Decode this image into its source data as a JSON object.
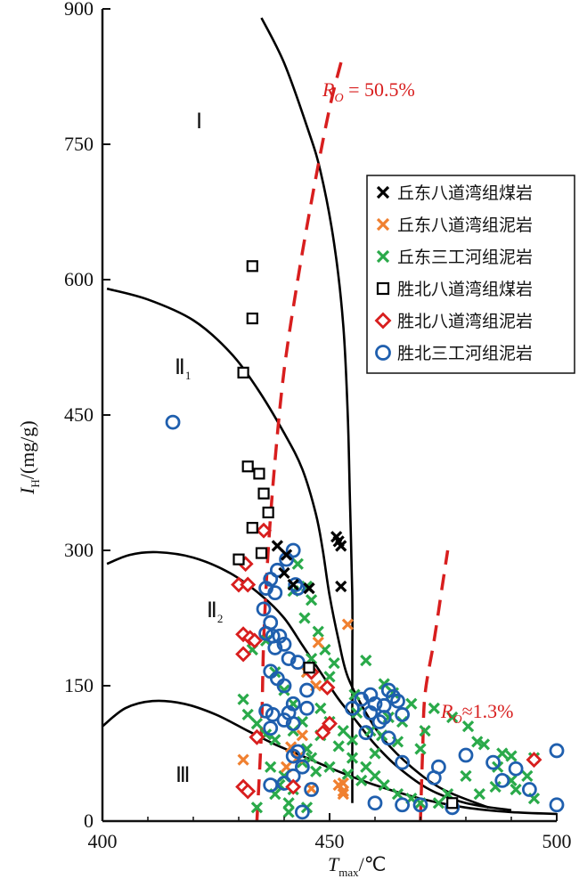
{
  "chart_data": {
    "type": "scatter",
    "title": "",
    "xlabel_main": "T",
    "xlabel_sub": "max",
    "xlabel_unit": "/℃",
    "ylabel_main": "I",
    "ylabel_sub": "H",
    "ylabel_unit": "/(mg/g)",
    "xlim": [
      400,
      500
    ],
    "ylim": [
      0,
      900
    ],
    "xticks": [
      400,
      450,
      500
    ],
    "yticks": [
      0,
      150,
      300,
      450,
      600,
      750,
      900
    ],
    "legend_position": "top-right",
    "grid": false,
    "series": [
      {
        "name": "丘东八道湾组煤岩",
        "marker": "x",
        "color": "#000000",
        "points": [
          [
            438.5,
            305
          ],
          [
            440.5,
            295
          ],
          [
            440,
            275
          ],
          [
            442,
            262
          ],
          [
            445.5,
            258
          ],
          [
            451.5,
            315
          ],
          [
            452,
            310
          ],
          [
            452.5,
            305
          ],
          [
            452.5,
            260
          ]
        ]
      },
      {
        "name": "丘东八道湾组泥岩",
        "marker": "x",
        "color": "#f08030",
        "points": [
          [
            447.5,
            198
          ],
          [
            445,
            165
          ],
          [
            447,
            150
          ],
          [
            454,
            218
          ],
          [
            443,
            70
          ],
          [
            444,
            95
          ],
          [
            441.5,
            82
          ],
          [
            446,
            36
          ],
          [
            453,
            42
          ],
          [
            453,
            33
          ],
          [
            431,
            68
          ],
          [
            440.5,
            60
          ],
          [
            452,
            40
          ],
          [
            453,
            30
          ]
        ]
      },
      {
        "name": "丘东三工河组泥岩",
        "marker": "x",
        "color": "#2aaa4a",
        "points": [
          [
            443,
            285
          ],
          [
            445,
            260
          ],
          [
            442,
            255
          ],
          [
            446,
            245
          ],
          [
            444.5,
            225
          ],
          [
            447.5,
            210
          ],
          [
            449,
            190
          ],
          [
            446,
            180
          ],
          [
            451,
            175
          ],
          [
            445,
            165
          ],
          [
            450,
            160
          ],
          [
            458,
            178
          ],
          [
            462,
            152
          ],
          [
            455.5,
            140
          ],
          [
            464,
            142
          ],
          [
            456,
            120
          ],
          [
            459,
            100
          ],
          [
            461.5,
            95
          ],
          [
            465,
            88
          ],
          [
            470,
            80
          ],
          [
            473,
            125
          ],
          [
            477,
            115
          ],
          [
            482.5,
            88
          ],
          [
            480.5,
            105
          ],
          [
            484,
            85
          ],
          [
            488,
            75
          ],
          [
            490,
            72
          ],
          [
            495,
            70
          ],
          [
            493.5,
            50
          ],
          [
            490,
            45
          ],
          [
            486.5,
            38
          ],
          [
            483,
            30
          ],
          [
            476,
            30
          ],
          [
            474,
            20
          ],
          [
            431,
            135
          ],
          [
            432,
            118
          ],
          [
            434,
            108
          ],
          [
            436,
            96
          ],
          [
            438,
            90
          ],
          [
            437,
            60
          ],
          [
            439,
            40
          ],
          [
            441,
            20
          ],
          [
            445,
            15
          ],
          [
            441,
            10
          ],
          [
            438,
            30
          ],
          [
            440,
            50
          ],
          [
            434,
            15
          ],
          [
            442,
            35
          ],
          [
            433,
            190
          ],
          [
            436,
            200
          ],
          [
            438,
            165
          ],
          [
            440,
            145
          ],
          [
            442,
            130
          ],
          [
            444,
            110
          ],
          [
            442,
            100
          ],
          [
            448,
            125
          ],
          [
            450,
            110
          ],
          [
            453,
            100
          ],
          [
            455,
            90
          ],
          [
            448,
            95
          ],
          [
            452,
            83
          ],
          [
            455,
            70
          ],
          [
            458,
            60
          ],
          [
            460,
            50
          ],
          [
            462,
            40
          ],
          [
            465,
            30
          ],
          [
            468,
            25
          ],
          [
            470,
            20
          ],
          [
            445,
            80
          ],
          [
            446,
            70
          ],
          [
            444,
            65
          ],
          [
            450,
            60
          ],
          [
            447,
            55
          ],
          [
            454,
            52
          ],
          [
            457,
            45
          ],
          [
            460,
            75
          ],
          [
            463,
            115
          ],
          [
            466,
            110
          ],
          [
            471,
            100
          ],
          [
            468,
            130
          ],
          [
            480,
            50
          ],
          [
            487,
            60
          ],
          [
            491,
            35
          ],
          [
            495,
            25
          ]
        ]
      },
      {
        "name": "胜北八道湾组煤岩",
        "marker": "square",
        "color": "#000000",
        "points": [
          [
            433,
            615
          ],
          [
            433,
            557
          ],
          [
            431,
            497
          ],
          [
            432,
            393
          ],
          [
            434.5,
            385
          ],
          [
            435.5,
            363
          ],
          [
            436.5,
            342
          ],
          [
            433,
            325
          ],
          [
            435,
            297
          ],
          [
            430,
            290
          ],
          [
            445.5,
            170
          ],
          [
            477,
            20
          ]
        ]
      },
      {
        "name": "胜北八道湾组泥岩",
        "marker": "diamond",
        "color": "#d81e1e",
        "points": [
          [
            435.5,
            322
          ],
          [
            430,
            262
          ],
          [
            432,
            262
          ],
          [
            431.5,
            285
          ],
          [
            431,
            207
          ],
          [
            432.5,
            203
          ],
          [
            433.5,
            200
          ],
          [
            431,
            185
          ],
          [
            434,
            93
          ],
          [
            446,
            165
          ],
          [
            449.5,
            148
          ],
          [
            450,
            108
          ],
          [
            448.5,
            98
          ],
          [
            431,
            38
          ],
          [
            432,
            33
          ],
          [
            495,
            68
          ],
          [
            442,
            38
          ]
        ]
      },
      {
        "name": "胜北三工河组泥岩",
        "marker": "circle",
        "color": "#1f5fae",
        "points": [
          [
            415.5,
            442
          ],
          [
            442,
            300
          ],
          [
            440.5,
            290
          ],
          [
            438.5,
            278
          ],
          [
            437,
            268
          ],
          [
            436,
            258
          ],
          [
            438,
            253
          ],
          [
            442.5,
            262
          ],
          [
            443,
            258
          ],
          [
            435.5,
            235
          ],
          [
            437,
            220
          ],
          [
            436,
            208
          ],
          [
            437.5,
            205
          ],
          [
            439,
            205
          ],
          [
            440,
            196
          ],
          [
            438,
            192
          ],
          [
            441,
            180
          ],
          [
            443,
            176
          ],
          [
            437,
            166
          ],
          [
            438.5,
            158
          ],
          [
            440,
            150
          ],
          [
            445,
            145
          ],
          [
            442,
            130
          ],
          [
            441,
            120
          ],
          [
            436,
            122
          ],
          [
            437.5,
            118
          ],
          [
            440,
            112
          ],
          [
            442,
            108
          ],
          [
            437,
            103
          ],
          [
            443,
            77
          ],
          [
            442,
            72
          ],
          [
            445,
            125
          ],
          [
            444,
            60
          ],
          [
            442,
            50
          ],
          [
            440,
            42
          ],
          [
            437,
            40
          ],
          [
            446,
            35
          ],
          [
            444,
            10
          ],
          [
            455,
            125
          ],
          [
            457,
            135
          ],
          [
            459,
            140
          ],
          [
            460,
            130
          ],
          [
            462,
            128
          ],
          [
            463,
            145
          ],
          [
            464,
            138
          ],
          [
            465,
            133
          ],
          [
            459,
            120
          ],
          [
            461,
            110
          ],
          [
            462,
            115
          ],
          [
            458,
            98
          ],
          [
            466,
            118
          ],
          [
            463,
            92
          ],
          [
            466,
            65
          ],
          [
            474,
            60
          ],
          [
            473,
            48
          ],
          [
            480,
            73
          ],
          [
            486,
            65
          ],
          [
            491,
            58
          ],
          [
            488,
            45
          ],
          [
            494,
            35
          ],
          [
            500,
            78
          ],
          [
            500,
            18
          ],
          [
            470,
            18
          ],
          [
            466,
            18
          ],
          [
            460,
            20
          ],
          [
            477,
            15
          ]
        ]
      }
    ]
  },
  "region_labels": {
    "I": "Ⅰ",
    "II1_main": "Ⅱ",
    "II1_sub": "1",
    "II2_main": "Ⅱ",
    "II2_sub": "2",
    "III": "Ⅲ"
  },
  "ro_labels": {
    "ro1_main": "R",
    "ro1_sub": "O",
    "ro1_rest": " = 50.5%",
    "ro2_main": "R",
    "ro2_sub": "O",
    "ro2_rest": "≈1.3%"
  },
  "curves": {
    "type_I_boundary": [
      [
        435,
        890
      ],
      [
        440,
        840
      ],
      [
        445,
        770
      ],
      [
        448,
        720
      ],
      [
        451,
        640
      ],
      [
        453,
        550
      ],
      [
        454,
        450
      ],
      [
        454.5,
        350
      ],
      [
        455,
        250
      ],
      [
        455,
        180
      ],
      [
        455,
        120
      ],
      [
        455,
        50
      ],
      [
        455,
        20
      ]
    ],
    "type_II1_boundary": [
      [
        401,
        590
      ],
      [
        410,
        578
      ],
      [
        420,
        555
      ],
      [
        428,
        520
      ],
      [
        434,
        480
      ],
      [
        440,
        430
      ],
      [
        444,
        390
      ],
      [
        447,
        340
      ],
      [
        448.5,
        300
      ],
      [
        450,
        250
      ],
      [
        452,
        200
      ],
      [
        454,
        160
      ],
      [
        458,
        120
      ],
      [
        462,
        90
      ],
      [
        468,
        60
      ],
      [
        475,
        35
      ],
      [
        485,
        15
      ]
    ],
    "type_II2_boundary": [
      [
        401,
        285
      ],
      [
        406,
        295
      ],
      [
        412,
        298
      ],
      [
        420,
        292
      ],
      [
        428,
        275
      ],
      [
        435,
        250
      ],
      [
        440,
        225
      ],
      [
        444,
        195
      ],
      [
        448,
        165
      ],
      [
        452,
        135
      ],
      [
        456,
        110
      ],
      [
        460,
        85
      ],
      [
        465,
        60
      ],
      [
        472,
        35
      ],
      [
        480,
        20
      ],
      [
        490,
        12
      ]
    ],
    "type_III_boundary": [
      [
        400,
        105
      ],
      [
        405,
        125
      ],
      [
        411,
        133
      ],
      [
        418,
        130
      ],
      [
        425,
        118
      ],
      [
        432,
        100
      ],
      [
        438,
        85
      ],
      [
        445,
        70
      ],
      [
        452,
        55
      ],
      [
        460,
        40
      ],
      [
        470,
        25
      ],
      [
        480,
        15
      ],
      [
        490,
        10
      ],
      [
        500,
        8
      ]
    ],
    "ro_50_5": [
      [
        434,
        0
      ],
      [
        435,
        100
      ],
      [
        435.5,
        200
      ],
      [
        436.5,
        300
      ],
      [
        438,
        400
      ],
      [
        440,
        500
      ],
      [
        443,
        600
      ],
      [
        446.5,
        700
      ],
      [
        450,
        790
      ],
      [
        453,
        850
      ]
    ],
    "ro_1_3": [
      [
        470,
        0
      ],
      [
        470.5,
        80
      ],
      [
        471,
        140
      ],
      [
        473,
        200
      ],
      [
        474.5,
        250
      ],
      [
        476,
        300
      ]
    ]
  }
}
